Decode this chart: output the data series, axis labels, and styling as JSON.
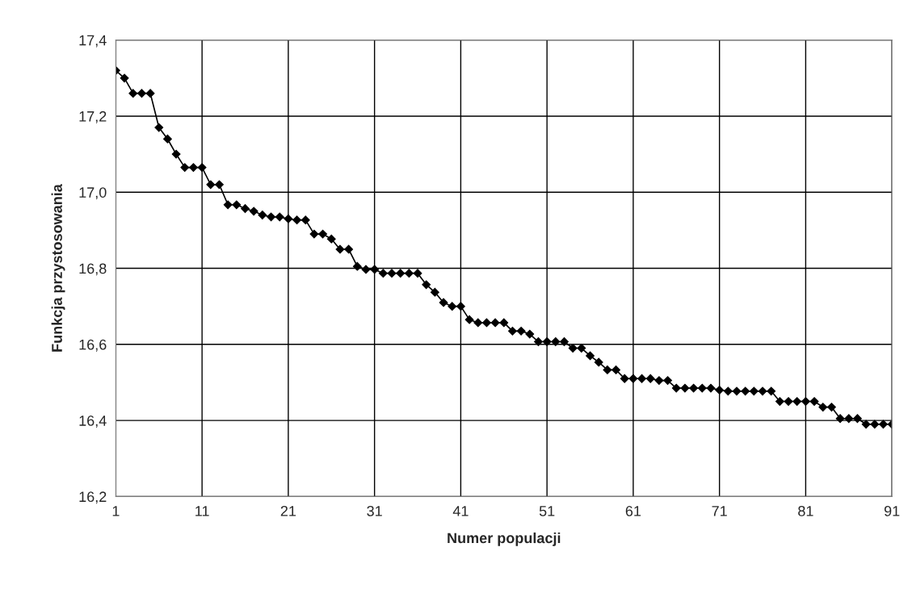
{
  "chart_data": {
    "type": "line",
    "xlabel": "Numer populacji",
    "ylabel": "Funkcja przystosowania",
    "x": [
      1,
      2,
      3,
      4,
      5,
      6,
      7,
      8,
      9,
      10,
      11,
      12,
      13,
      14,
      15,
      16,
      17,
      18,
      19,
      20,
      21,
      22,
      23,
      24,
      25,
      26,
      27,
      28,
      29,
      30,
      31,
      32,
      33,
      34,
      35,
      36,
      37,
      38,
      39,
      40,
      41,
      42,
      43,
      44,
      45,
      46,
      47,
      48,
      49,
      50,
      51,
      52,
      53,
      54,
      55,
      56,
      57,
      58,
      59,
      60,
      61,
      62,
      63,
      64,
      65,
      66,
      67,
      68,
      69,
      70,
      71,
      72,
      73,
      74,
      75,
      76,
      77,
      78,
      79,
      80,
      81,
      82,
      83,
      84,
      85,
      86,
      87,
      88,
      89,
      90,
      91
    ],
    "series": [
      {
        "color": "#000000",
        "values": [
          17.32,
          17.3,
          17.26,
          17.26,
          17.26,
          17.17,
          17.14,
          17.1,
          17.065,
          17.065,
          17.065,
          17.02,
          17.02,
          16.967,
          16.967,
          16.957,
          16.95,
          16.94,
          16.935,
          16.935,
          16.93,
          16.927,
          16.927,
          16.89,
          16.89,
          16.877,
          16.85,
          16.85,
          16.805,
          16.797,
          16.797,
          16.787,
          16.787,
          16.787,
          16.787,
          16.787,
          16.757,
          16.737,
          16.71,
          16.7,
          16.7,
          16.665,
          16.657,
          16.657,
          16.657,
          16.657,
          16.635,
          16.635,
          16.627,
          16.607,
          16.607,
          16.607,
          16.607,
          16.59,
          16.59,
          16.57,
          16.553,
          16.533,
          16.533,
          16.51,
          16.51,
          16.51,
          16.51,
          16.505,
          16.505,
          16.485,
          16.485,
          16.485,
          16.485,
          16.485,
          16.48,
          16.477,
          16.477,
          16.477,
          16.477,
          16.477,
          16.477,
          16.45,
          16.45,
          16.45,
          16.45,
          16.45,
          16.435,
          16.435,
          16.405,
          16.405,
          16.405,
          16.39,
          16.39,
          16.39,
          16.39
        ]
      }
    ],
    "xlim": [
      1,
      91
    ],
    "xticks": [
      1,
      11,
      21,
      31,
      41,
      51,
      61,
      71,
      81,
      91
    ],
    "ylim": [
      16.2,
      17.4
    ],
    "yticks": [
      {
        "value": 16.2,
        "label": "16,2"
      },
      {
        "value": 16.4,
        "label": "16,4"
      },
      {
        "value": 16.6,
        "label": "16,6"
      },
      {
        "value": 16.8,
        "label": "16,8"
      },
      {
        "value": 17.0,
        "label": "17,0"
      },
      {
        "value": 17.2,
        "label": "17,2"
      },
      {
        "value": 17.4,
        "label": "17,4"
      }
    ],
    "grid": true,
    "legend": false,
    "marker": "diamond",
    "line_style": "solid"
  }
}
